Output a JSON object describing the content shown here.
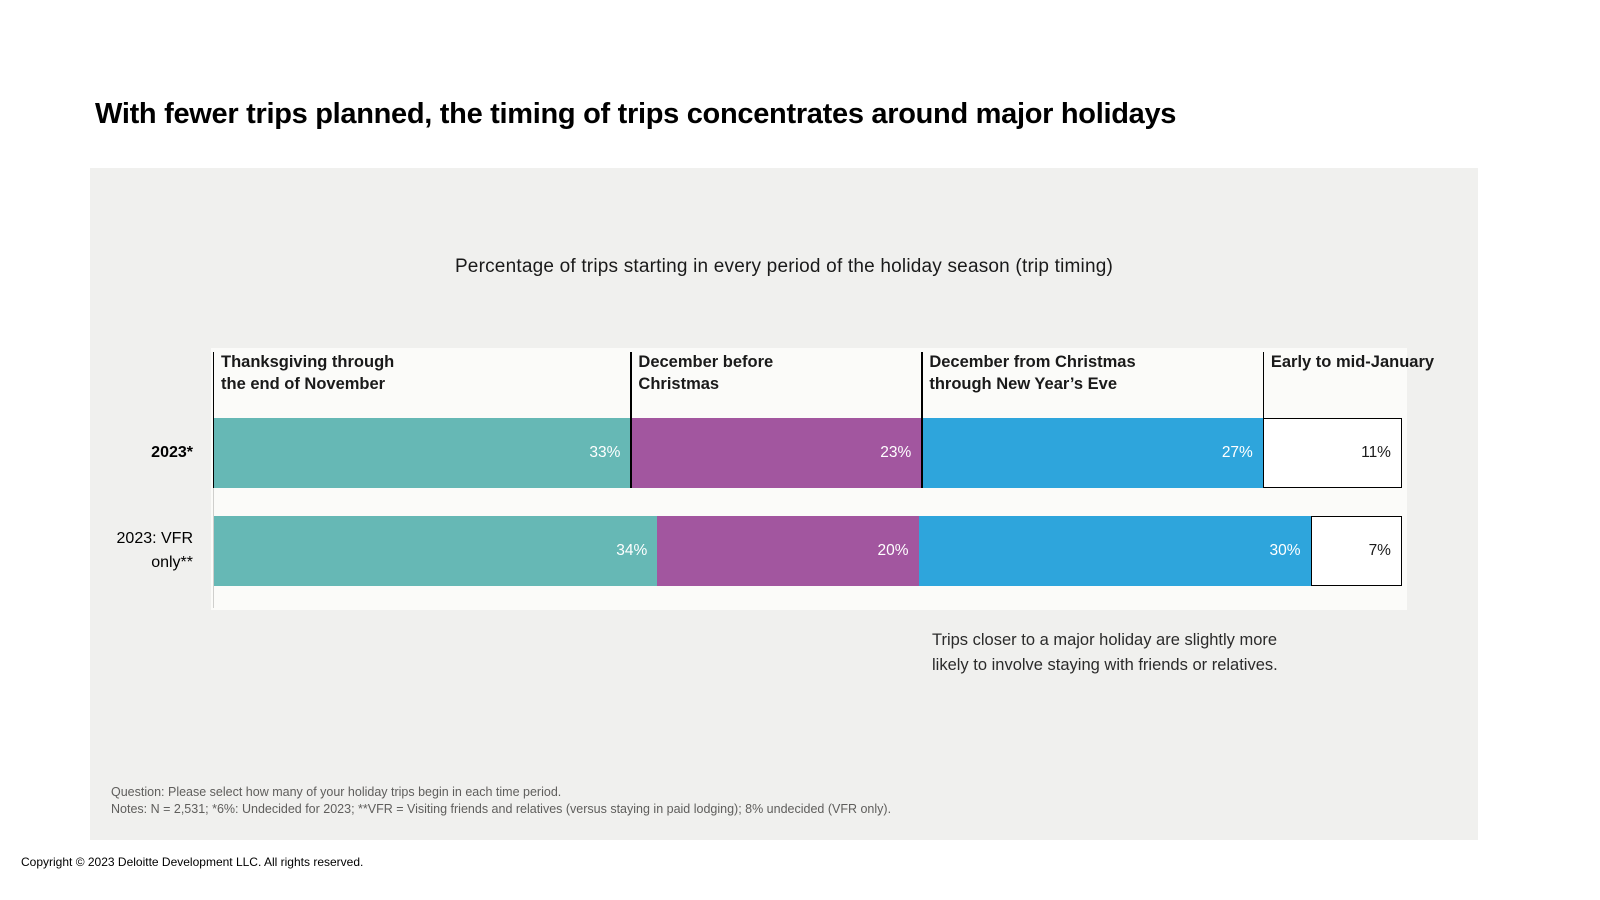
{
  "page": {
    "title": "With fewer trips planned, the timing of trips concentrates around major holidays",
    "copyright": "Copyright © 2023  Deloitte  Development  LLC. All rights reserved."
  },
  "chart_data": {
    "type": "bar",
    "variant": "horizontal-stacked-normalized",
    "title": "Percentage of trips starting in every period of the holiday season (trip timing)",
    "categories": [
      "Thanksgiving through\nthe end of November",
      "December before\nChristmas",
      "December from Christmas\nthrough New Year’s Eve",
      "Early to mid-January"
    ],
    "series": [
      {
        "name": "2023*",
        "values": [
          33,
          23,
          27,
          11
        ]
      },
      {
        "name": "2023: VFR\nonly**",
        "values": [
          34,
          20,
          30,
          7
        ]
      }
    ],
    "value_suffix": "%",
    "colors": [
      "#66b8b5",
      "#a2569f",
      "#2ea5dc",
      "#ffffff"
    ],
    "annotation": "Trips closer to a major holiday are slightly more\nlikely to involve staying with friends or relatives.",
    "question": "Question: Please select how many of your holiday trips begin in each time period.",
    "notes": "Notes: N = 2,531; *6%: Undecided for 2023; **VFR = Visiting friends and relatives (versus staying in paid lodging); 8% undecided (VFR only).",
    "legend_position": "none",
    "grid": false
  }
}
